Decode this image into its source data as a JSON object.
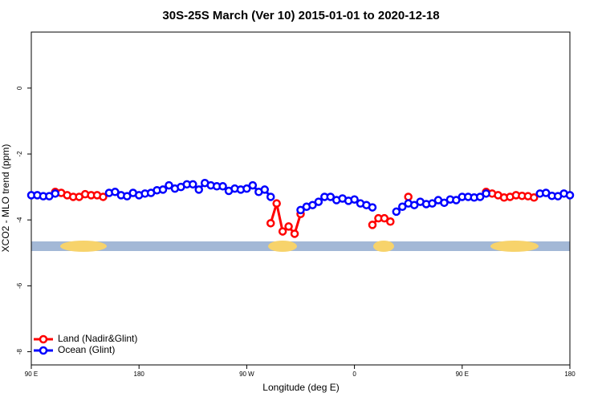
{
  "chart_data": {
    "type": "line",
    "title": "30S-25S March (Ver 10)   2015-01-01 to 2020-12-18",
    "x_label": "Longitude (deg E)",
    "y_label": "XCO2 - MLO trend (ppm)",
    "x": [
      90,
      95,
      100,
      105,
      110,
      115,
      120,
      125,
      130,
      135,
      140,
      145,
      150,
      155,
      160,
      165,
      170,
      175,
      180,
      185,
      190,
      195,
      200,
      205,
      210,
      215,
      220,
      225,
      230,
      235,
      240,
      245,
      250,
      255,
      260,
      265,
      270,
      275,
      280,
      285,
      290,
      295,
      300,
      305,
      310,
      315,
      320,
      325,
      330,
      335,
      340,
      345,
      350,
      355,
      360,
      365,
      370,
      375,
      380,
      385,
      390,
      395,
      400,
      405,
      410,
      415,
      420,
      425,
      430,
      435,
      440,
      445,
      450,
      455,
      460,
      465,
      470,
      475,
      480,
      485,
      490,
      495,
      500,
      505,
      510,
      515,
      520,
      525,
      530,
      535,
      540
    ],
    "series": [
      {
        "name": "Land (Nadir&Glint)",
        "color": "#ff0000",
        "values": [
          null,
          null,
          null,
          null,
          -3.15,
          -3.18,
          -3.25,
          -3.3,
          -3.3,
          -3.22,
          -3.25,
          -3.25,
          -3.3,
          null,
          null,
          null,
          null,
          null,
          null,
          null,
          null,
          null,
          null,
          null,
          null,
          null,
          null,
          null,
          null,
          null,
          null,
          null,
          null,
          null,
          null,
          null,
          null,
          null,
          null,
          null,
          -4.1,
          -3.5,
          -4.35,
          -4.2,
          -4.42,
          -3.82,
          null,
          null,
          null,
          null,
          null,
          null,
          null,
          null,
          null,
          null,
          null,
          -4.15,
          -3.95,
          -3.95,
          -4.05,
          null,
          null,
          -3.3,
          null,
          null,
          null,
          null,
          null,
          null,
          null,
          null,
          null,
          null,
          null,
          null,
          -3.15,
          -3.2,
          -3.25,
          -3.32,
          -3.3,
          -3.25,
          -3.27,
          -3.28,
          -3.32,
          null,
          null,
          null,
          null,
          null,
          null
        ]
      },
      {
        "name": "Ocean (Glint)",
        "color": "#0000ff",
        "values": [
          -3.25,
          -3.25,
          -3.28,
          -3.28,
          -3.2,
          null,
          null,
          null,
          null,
          null,
          null,
          null,
          null,
          -3.18,
          -3.15,
          -3.25,
          -3.28,
          -3.18,
          -3.25,
          -3.2,
          -3.18,
          -3.1,
          -3.08,
          -2.95,
          -3.05,
          -3.0,
          -2.92,
          -2.92,
          -3.08,
          -2.88,
          -2.95,
          -2.98,
          -2.98,
          -3.12,
          -3.05,
          -3.08,
          -3.05,
          -2.95,
          -3.15,
          -3.08,
          -3.3,
          null,
          null,
          null,
          null,
          -3.7,
          -3.6,
          -3.55,
          -3.45,
          -3.3,
          -3.3,
          -3.4,
          -3.35,
          -3.42,
          -3.38,
          -3.5,
          -3.55,
          -3.62,
          null,
          null,
          null,
          -3.75,
          -3.6,
          -3.5,
          -3.55,
          -3.45,
          -3.52,
          -3.5,
          -3.4,
          -3.48,
          -3.38,
          -3.4,
          -3.3,
          -3.3,
          -3.32,
          -3.3,
          -3.2,
          null,
          null,
          null,
          null,
          null,
          null,
          null,
          null,
          -3.2,
          -3.18,
          -3.27,
          -3.28,
          -3.2,
          -3.25
        ]
      }
    ],
    "xlim": [
      90,
      540
    ],
    "xticks": [
      {
        "value": 90,
        "label": "90 E"
      },
      180,
      {
        "value": 270,
        "label": "90 W"
      },
      {
        "value": 360,
        "label": "0"
      },
      {
        "value": 450,
        "label": "90 E"
      },
      {
        "value": 540,
        "label": "180"
      }
    ],
    "ylim": [
      -8.4,
      1.7
    ],
    "yticks": [
      0,
      -2,
      -4,
      -6,
      -8
    ],
    "legend": "bottom-left"
  }
}
